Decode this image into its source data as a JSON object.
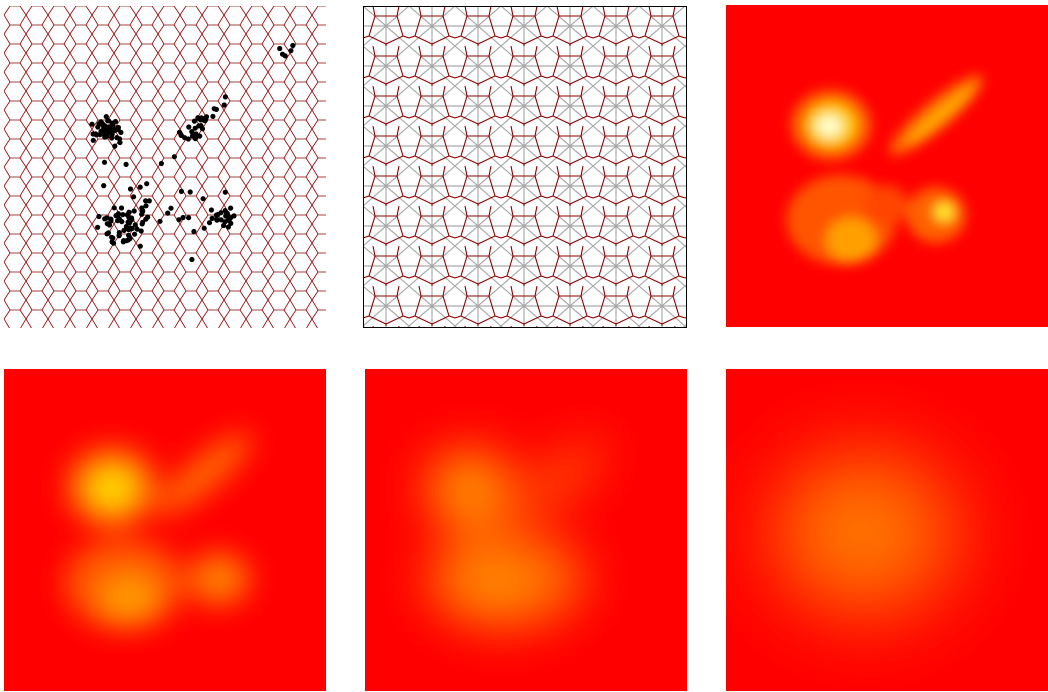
{
  "figure": {
    "panels": [
      {
        "id": "voronoi-with-points",
        "description_type": "voronoi-tessellation",
        "edge_color": "#8b0000",
        "point_color": "#000000",
        "frame": "none"
      },
      {
        "id": "voronoi-delaunay",
        "description_type": "voronoi-and-delaunay",
        "voronoi_color": "#8b0000",
        "delaunay_color": "#a9a9a9",
        "frame": "black"
      },
      {
        "id": "heatmap-sharp",
        "description_type": "density-map",
        "smoothing": "none"
      },
      {
        "id": "heatmap-blur-1",
        "description_type": "density-map",
        "smoothing": "low"
      },
      {
        "id": "heatmap-blur-2",
        "description_type": "density-map",
        "smoothing": "medium"
      },
      {
        "id": "heatmap-blur-3",
        "description_type": "density-map",
        "smoothing": "high"
      }
    ],
    "colormap": {
      "low": "#ff0000",
      "mid": "#ff8c00",
      "high": "#ffff66",
      "peak": "#ffffcc"
    }
  }
}
